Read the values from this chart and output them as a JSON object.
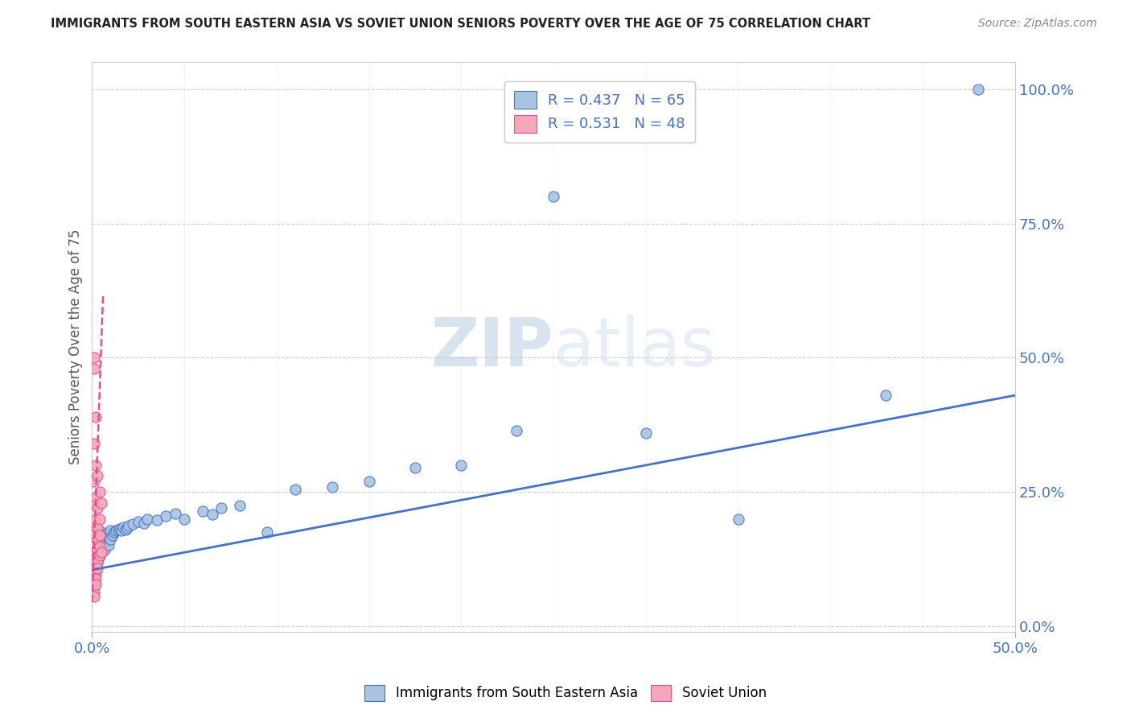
{
  "title": "IMMIGRANTS FROM SOUTH EASTERN ASIA VS SOVIET UNION SENIORS POVERTY OVER THE AGE OF 75 CORRELATION CHART",
  "source": "Source: ZipAtlas.com",
  "ylabel": "Seniors Poverty Over the Age of 75",
  "ylabel_right_labels": [
    "0.0%",
    "25.0%",
    "50.0%",
    "75.0%",
    "100.0%"
  ],
  "ylabel_right_values": [
    0.0,
    0.25,
    0.5,
    0.75,
    1.0
  ],
  "legend_blue_label": "R = 0.437   N = 65",
  "legend_pink_label": "R = 0.531   N = 48",
  "legend_bottom_blue": "Immigrants from South Eastern Asia",
  "legend_bottom_pink": "Soviet Union",
  "blue_color": "#a8c4e0",
  "pink_color": "#f4a7b9",
  "blue_line_color": "#4472c4",
  "pink_line_color": "#e05090",
  "watermark_zip": "ZIP",
  "watermark_atlas": "atlas",
  "xlim": [
    0.0,
    0.5
  ],
  "ylim": [
    -0.01,
    1.05
  ],
  "blue_scatter": [
    [
      0.001,
      0.155
    ],
    [
      0.001,
      0.13
    ],
    [
      0.002,
      0.16
    ],
    [
      0.002,
      0.14
    ],
    [
      0.002,
      0.125
    ],
    [
      0.002,
      0.115
    ],
    [
      0.003,
      0.17
    ],
    [
      0.003,
      0.15
    ],
    [
      0.003,
      0.14
    ],
    [
      0.003,
      0.13
    ],
    [
      0.003,
      0.12
    ],
    [
      0.004,
      0.165
    ],
    [
      0.004,
      0.15
    ],
    [
      0.004,
      0.14
    ],
    [
      0.004,
      0.13
    ],
    [
      0.005,
      0.175
    ],
    [
      0.005,
      0.16
    ],
    [
      0.005,
      0.148
    ],
    [
      0.005,
      0.138
    ],
    [
      0.006,
      0.17
    ],
    [
      0.006,
      0.155
    ],
    [
      0.006,
      0.145
    ],
    [
      0.007,
      0.168
    ],
    [
      0.007,
      0.155
    ],
    [
      0.007,
      0.143
    ],
    [
      0.008,
      0.172
    ],
    [
      0.008,
      0.158
    ],
    [
      0.009,
      0.165
    ],
    [
      0.009,
      0.152
    ],
    [
      0.01,
      0.178
    ],
    [
      0.01,
      0.162
    ],
    [
      0.011,
      0.17
    ],
    [
      0.012,
      0.175
    ],
    [
      0.013,
      0.178
    ],
    [
      0.014,
      0.18
    ],
    [
      0.015,
      0.182
    ],
    [
      0.016,
      0.178
    ],
    [
      0.017,
      0.185
    ],
    [
      0.018,
      0.18
    ],
    [
      0.019,
      0.183
    ],
    [
      0.02,
      0.188
    ],
    [
      0.022,
      0.19
    ],
    [
      0.025,
      0.195
    ],
    [
      0.028,
      0.192
    ],
    [
      0.03,
      0.2
    ],
    [
      0.035,
      0.198
    ],
    [
      0.04,
      0.205
    ],
    [
      0.045,
      0.21
    ],
    [
      0.05,
      0.2
    ],
    [
      0.06,
      0.215
    ],
    [
      0.065,
      0.208
    ],
    [
      0.07,
      0.22
    ],
    [
      0.08,
      0.225
    ],
    [
      0.095,
      0.175
    ],
    [
      0.11,
      0.255
    ],
    [
      0.13,
      0.26
    ],
    [
      0.15,
      0.27
    ],
    [
      0.175,
      0.295
    ],
    [
      0.2,
      0.3
    ],
    [
      0.23,
      0.365
    ],
    [
      0.25,
      0.8
    ],
    [
      0.3,
      0.36
    ],
    [
      0.35,
      0.2
    ],
    [
      0.43,
      0.43
    ],
    [
      0.48,
      1.0
    ]
  ],
  "pink_scatter": [
    [
      0.001,
      0.5
    ],
    [
      0.001,
      0.48
    ],
    [
      0.001,
      0.34
    ],
    [
      0.001,
      0.27
    ],
    [
      0.001,
      0.23
    ],
    [
      0.001,
      0.195
    ],
    [
      0.001,
      0.175
    ],
    [
      0.001,
      0.16
    ],
    [
      0.001,
      0.148
    ],
    [
      0.001,
      0.138
    ],
    [
      0.001,
      0.13
    ],
    [
      0.001,
      0.122
    ],
    [
      0.001,
      0.115
    ],
    [
      0.001,
      0.108
    ],
    [
      0.001,
      0.1
    ],
    [
      0.001,
      0.092
    ],
    [
      0.001,
      0.082
    ],
    [
      0.001,
      0.073
    ],
    [
      0.001,
      0.063
    ],
    [
      0.001,
      0.055
    ],
    [
      0.002,
      0.39
    ],
    [
      0.002,
      0.3
    ],
    [
      0.002,
      0.24
    ],
    [
      0.002,
      0.2
    ],
    [
      0.002,
      0.172
    ],
    [
      0.002,
      0.153
    ],
    [
      0.002,
      0.14
    ],
    [
      0.002,
      0.128
    ],
    [
      0.002,
      0.118
    ],
    [
      0.002,
      0.108
    ],
    [
      0.002,
      0.098
    ],
    [
      0.002,
      0.088
    ],
    [
      0.002,
      0.078
    ],
    [
      0.003,
      0.28
    ],
    [
      0.003,
      0.22
    ],
    [
      0.003,
      0.185
    ],
    [
      0.003,
      0.16
    ],
    [
      0.003,
      0.143
    ],
    [
      0.003,
      0.13
    ],
    [
      0.003,
      0.118
    ],
    [
      0.003,
      0.108
    ],
    [
      0.004,
      0.25
    ],
    [
      0.004,
      0.2
    ],
    [
      0.004,
      0.17
    ],
    [
      0.004,
      0.148
    ],
    [
      0.004,
      0.132
    ],
    [
      0.005,
      0.23
    ],
    [
      0.005,
      0.138
    ]
  ],
  "blue_trend_x": [
    0.0,
    0.5
  ],
  "blue_trend_y": [
    0.105,
    0.43
  ],
  "pink_trend_x": [
    0.0,
    0.006
  ],
  "pink_trend_y": [
    0.045,
    0.62
  ]
}
